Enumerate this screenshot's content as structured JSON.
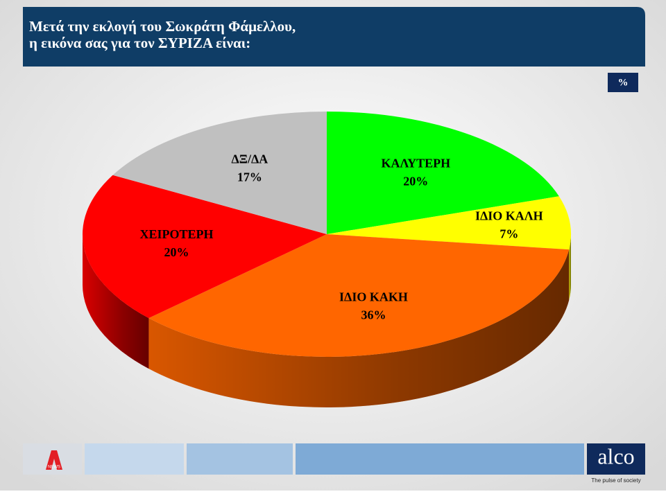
{
  "chart_data": {
    "type": "pie3d",
    "title": [
      "Μετά την εκλογή του Σωκράτη Φάμελλου,",
      "η εικόνα σας για τον  ΣΥΡΙΖΑ είναι:"
    ],
    "unit_label": "%",
    "categories": [
      "ΚΑΛΥΤΕΡΗ",
      "ΙΔΙΟ ΚΑΛΗ",
      "ΙΔΙΟ ΚΑΚΗ",
      "ΧΕΙΡΟΤΕΡΗ",
      "ΔΞ/ΔΑ"
    ],
    "values": [
      20,
      7,
      36,
      20,
      17
    ],
    "value_labels": [
      "20%",
      "7%",
      "36%",
      "20%",
      "17%"
    ],
    "colors": [
      "#00ff00",
      "#ffff00",
      "#ff6600",
      "#ff0000",
      "#c0c0c0"
    ]
  },
  "branding": {
    "news_logo": "NEWS",
    "brand": "alco",
    "tagline": "The pulse of society"
  }
}
